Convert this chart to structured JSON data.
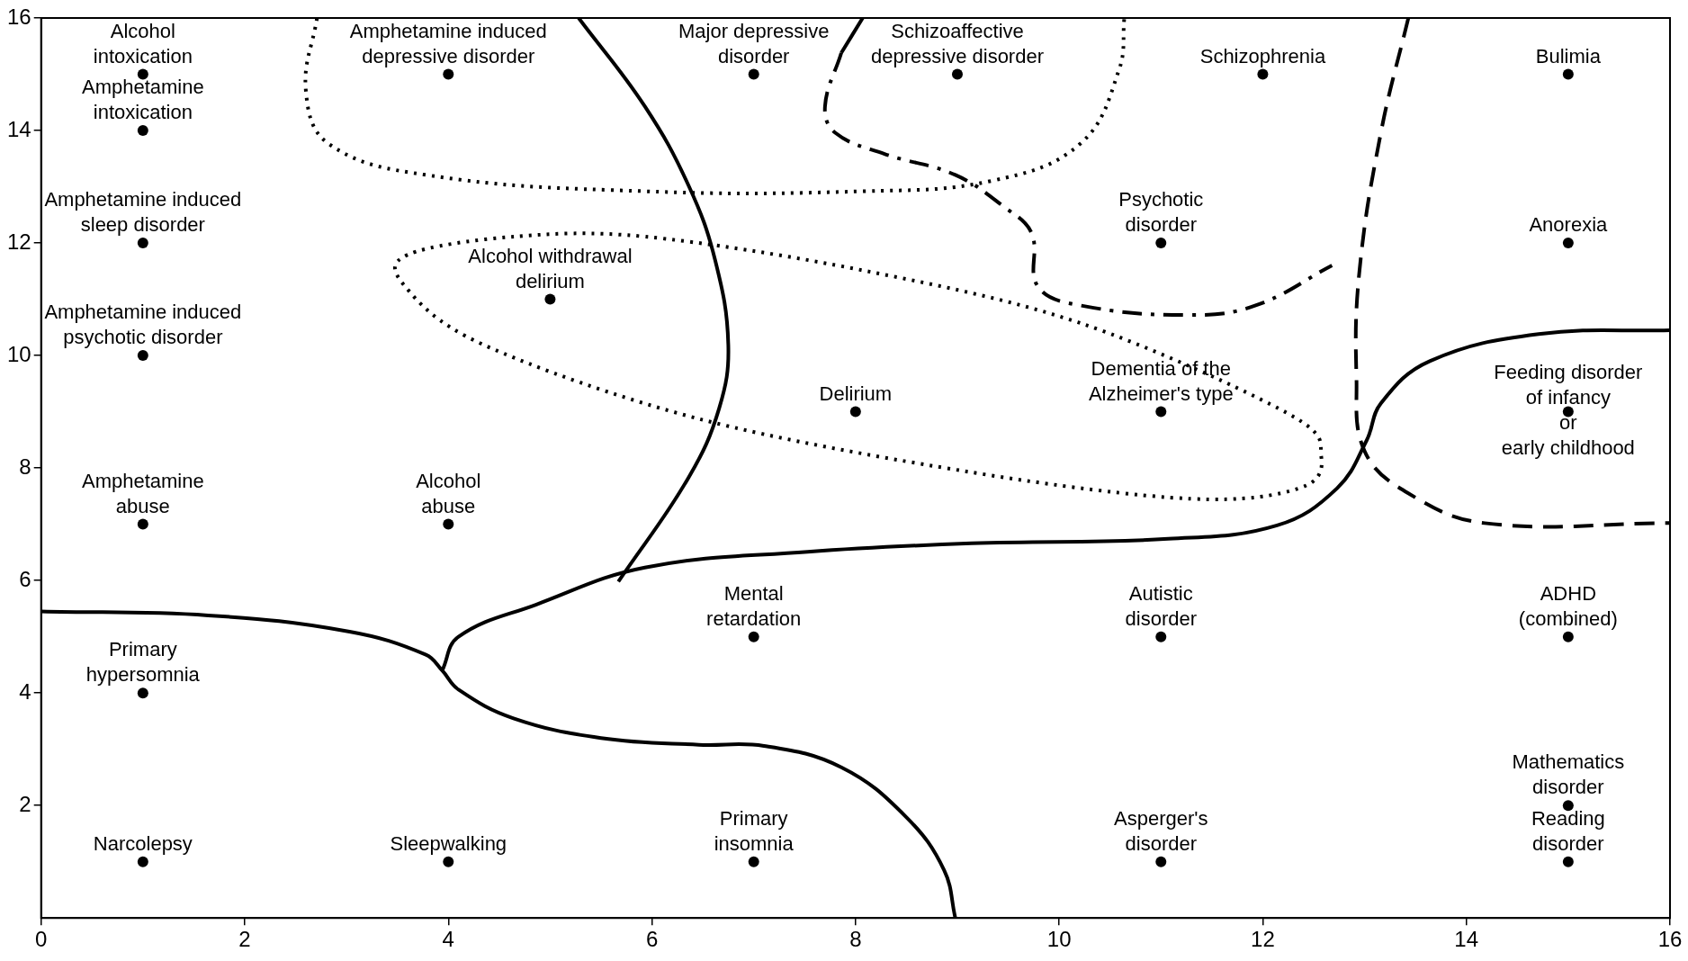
{
  "chart_data": {
    "type": "scatter",
    "xlim": [
      0,
      16
    ],
    "ylim": [
      0,
      16
    ],
    "xticks": [
      0,
      2,
      4,
      6,
      8,
      10,
      12,
      14,
      16
    ],
    "yticks": [
      2,
      4,
      6,
      8,
      10,
      12,
      14,
      16
    ],
    "grid": false,
    "legend": false,
    "marker": "circle",
    "series": [
      {
        "type": "scatter",
        "color": "#000000",
        "x": [
          1,
          1,
          1,
          1,
          1,
          1,
          1,
          4,
          4,
          4,
          5,
          7,
          7,
          7,
          8,
          9,
          11,
          11,
          11,
          11,
          12,
          15,
          15,
          15,
          15,
          15,
          15
        ],
        "values": [
          15,
          14,
          12,
          10,
          7,
          4,
          1,
          15,
          7,
          1,
          11,
          15,
          5,
          1,
          9,
          15,
          12,
          9,
          5,
          1,
          15,
          15,
          12,
          9,
          5,
          2,
          1
        ]
      },
      {
        "type": "line",
        "color": "#000000",
        "line_style": "solid",
        "marker": "none",
        "x": [
          0,
          1.64,
          3.03,
          3.78,
          3.94,
          4.1,
          4.64,
          5.5,
          6.46,
          7.1,
          7.86,
          8.5,
          8.87,
          8.98
        ],
        "values": [
          5.45,
          5.38,
          5.09,
          4.68,
          4.4,
          4.06,
          3.55,
          3.2,
          3.08,
          3.06,
          2.68,
          1.79,
          0.85,
          0
        ]
      },
      {
        "type": "line",
        "color": "#000000",
        "line_style": "solid",
        "marker": "none",
        "x": [
          3.94,
          4.1,
          4.86,
          5.93,
          7.53,
          9.14,
          11.07,
          12.14,
          12.73,
          13.02,
          13.16,
          13.64,
          14.71,
          16
        ],
        "values": [
          4.4,
          5.0,
          5.57,
          6.23,
          6.51,
          6.66,
          6.74,
          6.98,
          7.64,
          8.49,
          9.15,
          9.9,
          10.38,
          10.45
        ]
      },
      {
        "type": "line",
        "color": "#000000",
        "line_style": "solid",
        "marker": "none",
        "x": [
          5.28,
          5.93,
          6.36,
          6.62,
          6.75,
          6.66,
          6.36,
          5.67
        ],
        "values": [
          16,
          14.43,
          13.02,
          11.7,
          10.19,
          9.06,
          7.83,
          5.98
        ]
      },
      {
        "type": "line",
        "color": "#000000",
        "line_style": "solid",
        "marker": "none",
        "x": [
          8.07,
          7.86
        ],
        "values": [
          16,
          15.38
        ]
      },
      {
        "type": "line",
        "color": "#000000",
        "line_style": "dashdot",
        "marker": "none",
        "x": [
          7.86,
          7.7,
          7.8,
          8.29,
          8.98,
          9.46,
          9.73,
          9.79,
          10.21,
          11.29,
          11.93,
          12.68
        ],
        "values": [
          15.38,
          14.43,
          13.96,
          13.58,
          13.21,
          12.64,
          12.17,
          11.23,
          10.89,
          10.72,
          10.89,
          11.6
        ]
      },
      {
        "type": "line",
        "color": "#000000",
        "line_style": "dashed",
        "marker": "none",
        "x": [
          13.43,
          13.16,
          12.95,
          12.92,
          13,
          13.43,
          14.18,
          16
        ],
        "values": [
          16,
          13.96,
          11.51,
          9.62,
          8.3,
          7.55,
          7.02,
          7.02
        ]
      },
      {
        "type": "line",
        "color": "#000000",
        "line_style": "dotted",
        "marker": "none",
        "x": [
          2.71,
          2.6,
          2.82,
          3.78,
          5.93,
          8.07,
          9.35,
          10.21,
          10.59,
          10.64
        ],
        "values": [
          16,
          14.72,
          13.77,
          13.21,
          12.92,
          12.92,
          13.11,
          13.77,
          15.09,
          16
        ]
      }
    ],
    "annotations": [
      {
        "text": "Alcohol\nintoxication",
        "x": 1,
        "y": 15
      },
      {
        "text": "Amphetamine\nintoxication",
        "x": 1,
        "y": 14
      },
      {
        "text": "Amphetamine induced\nsleep disorder",
        "x": 1,
        "y": 12
      },
      {
        "text": "Amphetamine induced\npsychotic disorder",
        "x": 1,
        "y": 10
      },
      {
        "text": "Amphetamine\nabuse",
        "x": 1,
        "y": 7
      },
      {
        "text": "Primary\nhypersomnia",
        "x": 1,
        "y": 4
      },
      {
        "text": "Narcolepsy",
        "x": 1,
        "y": 1
      },
      {
        "text": "Amphetamine induced\ndepressive disorder",
        "x": 4,
        "y": 15
      },
      {
        "text": "Alcohol\nabuse",
        "x": 4,
        "y": 7
      },
      {
        "text": "Sleepwalking",
        "x": 4,
        "y": 1
      },
      {
        "text": "Alcohol withdrawal\ndelirium",
        "x": 5,
        "y": 11
      },
      {
        "text": "Major depressive\ndisorder",
        "x": 7,
        "y": 15
      },
      {
        "text": "Mental\nretardation",
        "x": 7,
        "y": 5
      },
      {
        "text": "Primary\ninsomnia",
        "x": 7,
        "y": 1
      },
      {
        "text": "Delirium",
        "x": 8,
        "y": 9
      },
      {
        "text": "Schizoaffective\ndepressive disorder",
        "x": 9,
        "y": 15
      },
      {
        "text": "Psychotic\ndisorder",
        "x": 11,
        "y": 12
      },
      {
        "text": "Dementia of the\nAlzheimer's type",
        "x": 11,
        "y": 9
      },
      {
        "text": "Autistic\ndisorder",
        "x": 11,
        "y": 5
      },
      {
        "text": "Asperger's\ndisorder",
        "x": 11,
        "y": 1
      },
      {
        "text": "Schizophrenia",
        "x": 12,
        "y": 15
      },
      {
        "text": "Bulimia",
        "x": 15,
        "y": 15
      },
      {
        "text": "Anorexia",
        "x": 15,
        "y": 12
      },
      {
        "text": "Feeding disorder\nof infancy\nor\nearly childhood",
        "x": 15,
        "y": 9
      },
      {
        "text": "ADHD\n(combined)",
        "x": 15,
        "y": 5
      },
      {
        "text": "Mathematics\ndisorder",
        "x": 15,
        "y": 2
      },
      {
        "text": "Reading\ndisorder",
        "x": 15,
        "y": 1
      }
    ]
  }
}
